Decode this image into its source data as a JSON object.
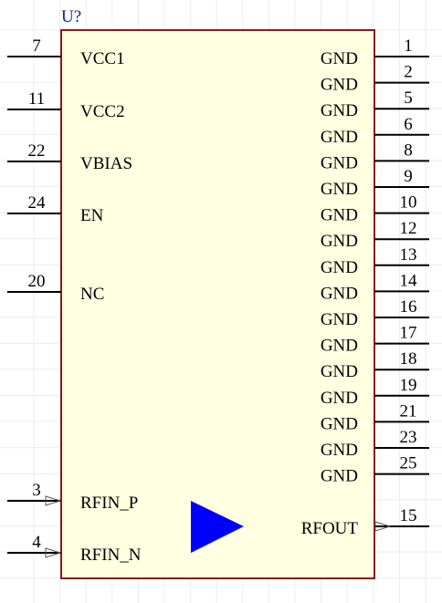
{
  "designator": "U?",
  "left_pins": [
    {
      "number": "7",
      "name": "VCC1"
    },
    {
      "number": "11",
      "name": "VCC2"
    },
    {
      "number": "22",
      "name": "VBIAS"
    },
    {
      "number": "24",
      "name": "EN"
    },
    {
      "number": "20",
      "name": "NC"
    },
    {
      "number": "3",
      "name": "RFIN_P"
    },
    {
      "number": "4",
      "name": "RFIN_N"
    }
  ],
  "right_pins": [
    {
      "number": "1",
      "name": "GND"
    },
    {
      "number": "2",
      "name": "GND"
    },
    {
      "number": "5",
      "name": "GND"
    },
    {
      "number": "6",
      "name": "GND"
    },
    {
      "number": "8",
      "name": "GND"
    },
    {
      "number": "9",
      "name": "GND"
    },
    {
      "number": "10",
      "name": "GND"
    },
    {
      "number": "12",
      "name": "GND"
    },
    {
      "number": "13",
      "name": "GND"
    },
    {
      "number": "14",
      "name": "GND"
    },
    {
      "number": "16",
      "name": "GND"
    },
    {
      "number": "17",
      "name": "GND"
    },
    {
      "number": "18",
      "name": "GND"
    },
    {
      "number": "19",
      "name": "GND"
    },
    {
      "number": "21",
      "name": "GND"
    },
    {
      "number": "23",
      "name": "GND"
    },
    {
      "number": "25",
      "name": "GND"
    },
    {
      "number": "15",
      "name": "RFOUT"
    }
  ]
}
